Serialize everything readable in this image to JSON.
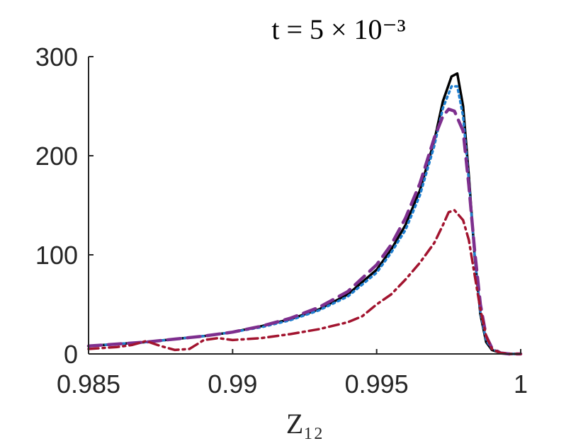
{
  "chart_data": {
    "type": "line",
    "title": "t = 5 × 10⁻³",
    "xlabel": "Z₁₂",
    "ylabel": "",
    "xlim": [
      0.985,
      1.0
    ],
    "ylim": [
      0,
      300
    ],
    "xticks": [
      0.985,
      0.99,
      0.995,
      1.0
    ],
    "xtick_labels": [
      "0.985",
      "0.99",
      "0.995",
      "1"
    ],
    "yticks": [
      0,
      100,
      200,
      300
    ],
    "ytick_labels": [
      "0",
      "100",
      "200",
      "300"
    ],
    "grid": false,
    "legend": "none",
    "series": [
      {
        "style": "solid",
        "color": "#000000",
        "x": [
          0.985,
          0.986,
          0.987,
          0.988,
          0.989,
          0.99,
          0.991,
          0.992,
          0.993,
          0.994,
          0.995,
          0.9955,
          0.996,
          0.9965,
          0.997,
          0.9973,
          0.9976,
          0.9978,
          0.998,
          0.9982,
          0.9984,
          0.9986,
          0.9988,
          0.999,
          0.9993,
          0.9996,
          1.0
        ],
        "y": [
          8,
          10,
          12,
          15,
          18,
          22,
          28,
          35,
          45,
          60,
          85,
          105,
          130,
          165,
          215,
          255,
          280,
          283,
          250,
          180,
          100,
          40,
          12,
          4,
          1,
          0,
          0
        ]
      },
      {
        "style": "dotted",
        "color": "#1f7fd0",
        "x": [
          0.985,
          0.986,
          0.987,
          0.988,
          0.989,
          0.99,
          0.991,
          0.992,
          0.993,
          0.994,
          0.995,
          0.9955,
          0.996,
          0.9965,
          0.997,
          0.9973,
          0.9976,
          0.9978,
          0.998,
          0.9982,
          0.9984,
          0.9986,
          0.9988,
          0.999,
          0.9993,
          0.9996,
          1.0
        ],
        "y": [
          8,
          10,
          12,
          15,
          18,
          22,
          27,
          34,
          44,
          58,
          82,
          102,
          125,
          160,
          210,
          248,
          270,
          270,
          240,
          175,
          100,
          42,
          14,
          5,
          1,
          0,
          0
        ]
      },
      {
        "style": "dashed",
        "color": "#7e2f8e",
        "x": [
          0.985,
          0.986,
          0.987,
          0.988,
          0.989,
          0.99,
          0.991,
          0.992,
          0.993,
          0.994,
          0.995,
          0.9955,
          0.996,
          0.9965,
          0.997,
          0.9973,
          0.9975,
          0.9977,
          0.998,
          0.9982,
          0.9984,
          0.9986,
          0.9988,
          0.999,
          0.9993,
          0.9996,
          1.0
        ],
        "y": [
          8,
          10,
          12,
          15,
          18,
          22,
          28,
          36,
          47,
          63,
          90,
          110,
          137,
          172,
          218,
          240,
          247,
          245,
          225,
          170,
          105,
          50,
          18,
          6,
          1,
          0,
          0
        ]
      },
      {
        "style": "dashdot",
        "color": "#a2142f",
        "x": [
          0.985,
          0.986,
          0.9865,
          0.987,
          0.9875,
          0.988,
          0.9885,
          0.989,
          0.9895,
          0.99,
          0.991,
          0.992,
          0.993,
          0.994,
          0.9945,
          0.995,
          0.9955,
          0.996,
          0.9965,
          0.997,
          0.9973,
          0.9975,
          0.9977,
          0.998,
          0.9982,
          0.9984,
          0.9986,
          0.9988,
          0.999,
          0.9993,
          0.9996,
          1.0
        ],
        "y": [
          5,
          7,
          9,
          13,
          8,
          4,
          5,
          14,
          16,
          14,
          16,
          20,
          25,
          32,
          38,
          50,
          60,
          75,
          92,
          112,
          130,
          143,
          145,
          135,
          115,
          80,
          45,
          18,
          5,
          1,
          0,
          0
        ]
      }
    ]
  }
}
